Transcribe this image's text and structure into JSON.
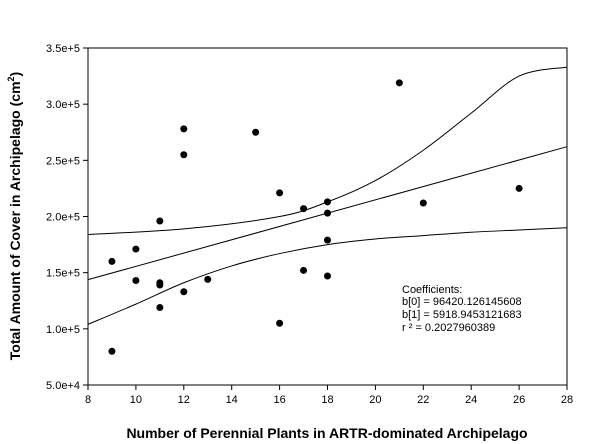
{
  "chart_data": {
    "type": "scatter",
    "xlabel": "Number of Perennial Plants in ARTR-dominated Archipelago",
    "ylabel": "Total Amount of Cover in Archipelago (cm",
    "ylabel_sup": "2",
    "ylabel_close": ")",
    "xlim": [
      8,
      28
    ],
    "ylim": [
      50000,
      350000
    ],
    "x_ticks": [
      8,
      10,
      12,
      14,
      16,
      18,
      20,
      22,
      24,
      26,
      28
    ],
    "x_tick_labels": [
      "8",
      "10",
      "12",
      "14",
      "16",
      "18",
      "20",
      "22",
      "24",
      "26",
      "28"
    ],
    "y_ticks": [
      50000,
      100000,
      150000,
      200000,
      250000,
      300000,
      350000
    ],
    "y_tick_labels": [
      "5.0e+4",
      "1.0e+5",
      "1.5e+5",
      "2.0e+5",
      "2.5e+5",
      "3.0e+5",
      "3.5e+5"
    ],
    "grid": false,
    "points": [
      {
        "x": 9,
        "y": 160000
      },
      {
        "x": 9,
        "y": 80000
      },
      {
        "x": 10,
        "y": 171000
      },
      {
        "x": 10,
        "y": 143000
      },
      {
        "x": 11,
        "y": 196000
      },
      {
        "x": 11,
        "y": 141000
      },
      {
        "x": 11,
        "y": 139000
      },
      {
        "x": 11,
        "y": 119000
      },
      {
        "x": 12,
        "y": 278000
      },
      {
        "x": 12,
        "y": 255000
      },
      {
        "x": 12,
        "y": 133000
      },
      {
        "x": 13,
        "y": 144000
      },
      {
        "x": 15,
        "y": 275000
      },
      {
        "x": 16,
        "y": 221000
      },
      {
        "x": 16,
        "y": 105000
      },
      {
        "x": 17,
        "y": 207000
      },
      {
        "x": 17,
        "y": 152000
      },
      {
        "x": 18,
        "y": 213000
      },
      {
        "x": 18,
        "y": 203000
      },
      {
        "x": 18,
        "y": 179000
      },
      {
        "x": 18,
        "y": 147000
      },
      {
        "x": 21,
        "y": 319000
      },
      {
        "x": 22,
        "y": 212000
      },
      {
        "x": 26,
        "y": 225000
      }
    ],
    "regression": {
      "b0": 96420.126145608,
      "b1": 5918.9453121683,
      "upper_band": [
        [
          8,
          184000
        ],
        [
          12,
          189000
        ],
        [
          16,
          200000
        ],
        [
          18,
          213000
        ],
        [
          20,
          232000
        ],
        [
          22,
          259000
        ],
        [
          24,
          292000
        ],
        [
          26,
          325000
        ],
        [
          28,
          333000
        ]
      ],
      "lower_band": [
        [
          8,
          104000
        ],
        [
          10,
          122000
        ],
        [
          12,
          141000
        ],
        [
          14,
          156000
        ],
        [
          16,
          167000
        ],
        [
          18,
          175000
        ],
        [
          20,
          180000
        ],
        [
          22,
          183000
        ],
        [
          24,
          186000
        ],
        [
          26,
          188000
        ],
        [
          28,
          190000
        ]
      ]
    },
    "annotation": {
      "title": "Coefficients:",
      "lines": [
        "b[0] = 96420.126145608",
        "b[1] = 5918.9453121683",
        "r ² = 0.2027960389"
      ]
    }
  }
}
